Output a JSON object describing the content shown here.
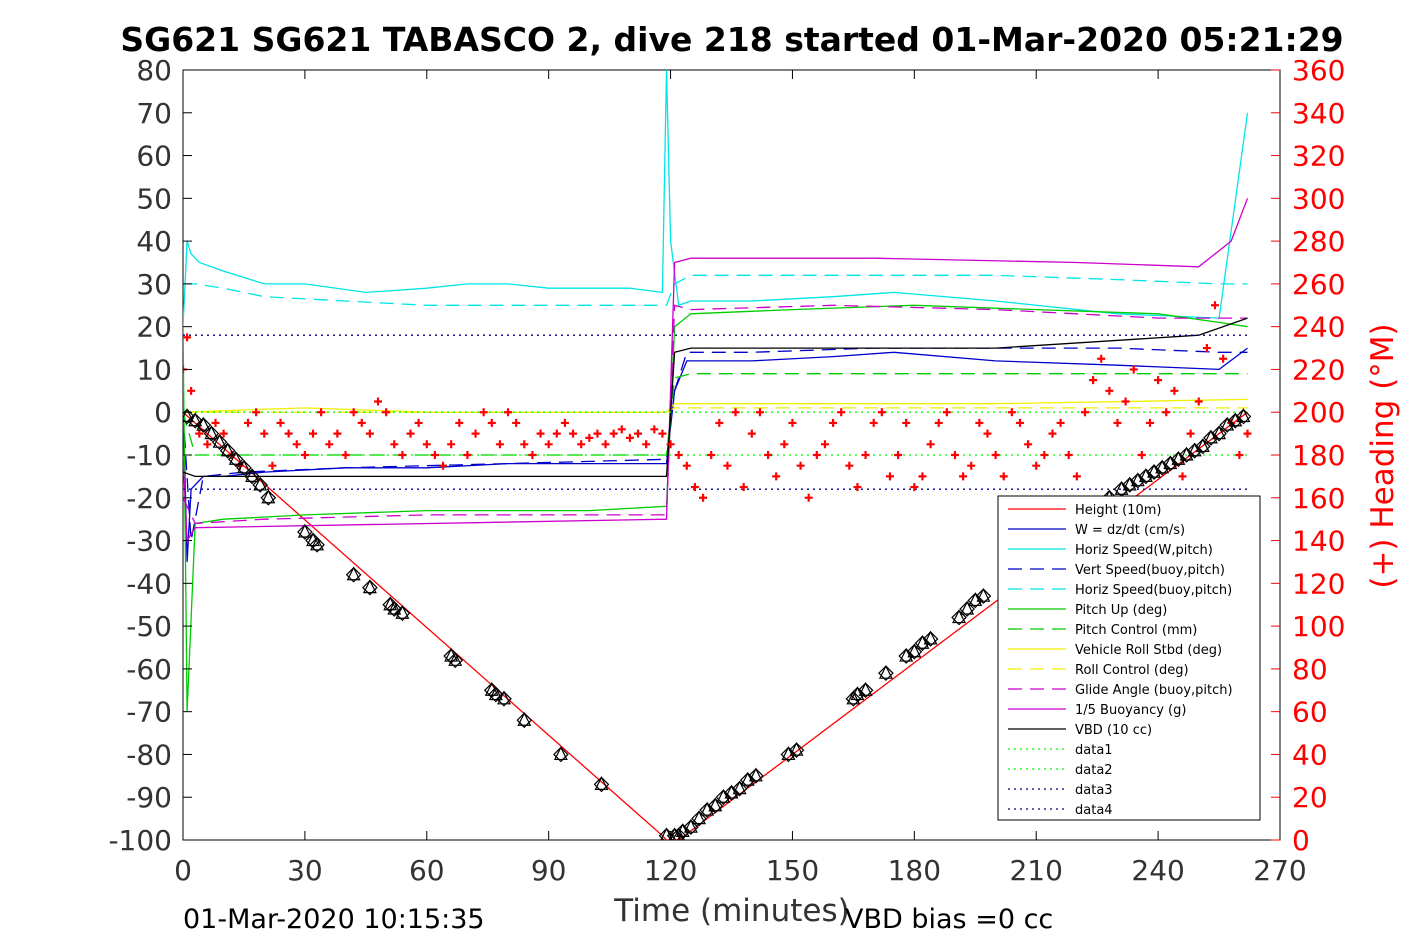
{
  "chart_data": {
    "type": "line",
    "title": "SG621 SG621 TABASCO 2, dive 218 started 01-Mar-2020 05:21:29",
    "xlabel": "Time (minutes)",
    "ylabel_left": "",
    "ylabel_right": "(+) Heading (°M)",
    "xlim": [
      0,
      270
    ],
    "ylim_left": [
      -100,
      80
    ],
    "ylim_right": [
      0,
      360
    ],
    "x_ticks": [
      "0",
      "30",
      "60",
      "90",
      "120",
      "150",
      "180",
      "210",
      "240",
      "270"
    ],
    "y_ticks_left": [
      "80",
      "70",
      "60",
      "50",
      "40",
      "30",
      "20",
      "10",
      "0",
      "-10",
      "-20",
      "-30",
      "-40",
      "-50",
      "-60",
      "-70",
      "-80",
      "-90",
      "-100"
    ],
    "y_ticks_right": [
      "360",
      "340",
      "320",
      "300",
      "280",
      "260",
      "240",
      "220",
      "200",
      "180",
      "160",
      "140",
      "120",
      "100",
      "80",
      "60",
      "40",
      "20",
      "0"
    ],
    "footer_left": "01-Mar-2020 10:15:35",
    "footer_right": "VBD bias =0 cc",
    "legend_position": "bottom-right",
    "grid": false,
    "series": [
      {
        "name": "Height (10m)",
        "color": "#ff0000",
        "style": "solid",
        "x": [
          0,
          118,
          119,
          122,
          262
        ],
        "y": [
          0,
          -99,
          -100,
          -100,
          0
        ]
      },
      {
        "name": "W = dz/dt (cm/s)",
        "color": "#0000cc",
        "style": "solid",
        "x": [
          0,
          1,
          2,
          5,
          10,
          20,
          40,
          60,
          80,
          100,
          119,
          121,
          124,
          140,
          160,
          175,
          200,
          230,
          255,
          262
        ],
        "y": [
          5,
          -35,
          -18,
          -15,
          -15,
          -14,
          -13,
          -13,
          -12,
          -12,
          -12,
          5,
          12,
          12,
          13,
          14,
          12,
          11,
          10,
          15
        ]
      },
      {
        "name": "Horiz Speed(W,pitch)",
        "color": "#00e5e5",
        "style": "solid",
        "x": [
          0,
          1,
          2,
          4,
          10,
          20,
          30,
          45,
          60,
          70,
          80,
          90,
          100,
          110,
          118,
          119,
          120,
          122,
          125,
          140,
          160,
          175,
          200,
          230,
          255,
          262
        ],
        "y": [
          20,
          40,
          37,
          35,
          33,
          30,
          30,
          28,
          29,
          30,
          30,
          29,
          29,
          29,
          28,
          80,
          40,
          25,
          26,
          26,
          27,
          28,
          26,
          23,
          22,
          70
        ]
      },
      {
        "name": "Vert Speed(buoy,pitch)",
        "color": "#0000cc",
        "style": "dashed",
        "x": [
          0,
          2,
          5,
          15,
          40,
          80,
          119,
          121,
          124,
          140,
          170,
          200,
          230,
          255,
          262
        ],
        "y": [
          0,
          -30,
          -15,
          -14,
          -13,
          -12,
          -11,
          5,
          14,
          14,
          15,
          15,
          15,
          14,
          14
        ]
      },
      {
        "name": "Horiz Speed(buoy,pitch)",
        "color": "#00e5e5",
        "style": "dashed",
        "x": [
          0,
          3,
          10,
          20,
          40,
          60,
          80,
          100,
          119,
          121,
          125,
          160,
          200,
          230,
          255,
          262
        ],
        "y": [
          30,
          30,
          29,
          27,
          26,
          25,
          25,
          25,
          25,
          30,
          32,
          32,
          32,
          31,
          30,
          30
        ]
      },
      {
        "name": "Pitch Up (deg)",
        "color": "#00cc00",
        "style": "solid",
        "x": [
          0,
          1,
          3,
          10,
          30,
          60,
          100,
          119,
          121,
          125,
          150,
          180,
          210,
          240,
          255,
          262
        ],
        "y": [
          20,
          -70,
          -26,
          -25,
          -24,
          -23,
          -23,
          -22,
          20,
          23,
          24,
          25,
          24,
          23,
          21,
          20
        ]
      },
      {
        "name": "Pitch Control (mm)",
        "color": "#00cc00",
        "style": "dashed",
        "x": [
          0,
          3,
          60,
          119,
          121,
          125,
          200,
          262
        ],
        "y": [
          0,
          -10,
          -10,
          -10,
          8,
          9,
          9,
          9
        ]
      },
      {
        "name": "Vehicle Roll Stbd (deg)",
        "color": "#f0f000",
        "style": "solid",
        "x": [
          0,
          30,
          60,
          90,
          119,
          121,
          150,
          200,
          262
        ],
        "y": [
          0,
          1,
          0,
          0,
          0,
          2,
          2,
          2,
          3
        ]
      },
      {
        "name": "Roll Control (deg)",
        "color": "#f0f000",
        "style": "dashed",
        "x": [
          0,
          119,
          121,
          262
        ],
        "y": [
          0,
          0,
          1,
          1
        ]
      },
      {
        "name": "Glide Angle (buoy,pitch)",
        "color": "#cc00cc",
        "style": "dashed",
        "x": [
          0,
          3,
          20,
          60,
          119,
          121,
          125,
          160,
          200,
          240,
          262
        ],
        "y": [
          -20,
          -26,
          -25,
          -24,
          -24,
          25,
          24,
          25,
          24,
          22,
          22
        ]
      },
      {
        "name": "1/5 Buoyancy (g)",
        "color": "#cc00cc",
        "style": "solid",
        "x": [
          0,
          1,
          3,
          119,
          121,
          125,
          170,
          220,
          250,
          258,
          262
        ],
        "y": [
          -10,
          -30,
          -27,
          -25,
          35,
          36,
          36,
          35,
          34,
          40,
          50
        ]
      },
      {
        "name": "VBD (10 cc)",
        "color": "#000000",
        "style": "solid",
        "x": [
          0,
          3,
          119,
          121,
          125,
          200,
          250,
          262
        ],
        "y": [
          -14,
          -15,
          -15,
          14,
          15,
          15,
          18,
          22
        ]
      },
      {
        "name": "data1",
        "color": "#00ff00",
        "style": "dotted",
        "x": [
          0,
          262
        ],
        "y": [
          -10,
          -10
        ]
      },
      {
        "name": "data2",
        "color": "#00ff00",
        "style": "dotted",
        "x": [
          0,
          262
        ],
        "y": [
          0,
          0
        ]
      },
      {
        "name": "data3",
        "color": "#000080",
        "style": "dotted",
        "x": [
          0,
          262
        ],
        "y": [
          -18,
          -18
        ]
      },
      {
        "name": "data4",
        "color": "#000080",
        "style": "dotted",
        "x": [
          0,
          262
        ],
        "y": [
          18,
          18
        ]
      }
    ],
    "heading_series": {
      "axis": "right",
      "color": "#ff0000",
      "marker": "+",
      "x": [
        0,
        1,
        2,
        4,
        6,
        8,
        10,
        12,
        14,
        16,
        18,
        20,
        22,
        24,
        26,
        28,
        30,
        32,
        34,
        36,
        38,
        40,
        42,
        44,
        46,
        48,
        50,
        52,
        54,
        56,
        58,
        60,
        62,
        64,
        66,
        68,
        70,
        72,
        74,
        76,
        78,
        80,
        82,
        84,
        86,
        88,
        90,
        92,
        94,
        96,
        98,
        100,
        102,
        104,
        106,
        108,
        110,
        112,
        114,
        116,
        118,
        120,
        122,
        124,
        126,
        128,
        130,
        132,
        134,
        136,
        138,
        140,
        142,
        144,
        146,
        148,
        150,
        152,
        154,
        156,
        158,
        160,
        162,
        164,
        166,
        168,
        170,
        172,
        174,
        176,
        178,
        180,
        182,
        184,
        186,
        188,
        190,
        192,
        194,
        196,
        198,
        200,
        202,
        204,
        206,
        208,
        210,
        212,
        214,
        216,
        218,
        220,
        222,
        224,
        226,
        228,
        230,
        232,
        234,
        236,
        238,
        240,
        242,
        244,
        246,
        248,
        250,
        252,
        254,
        256,
        258,
        260,
        262
      ],
      "y": [
        220,
        235,
        210,
        190,
        185,
        195,
        190,
        180,
        175,
        195,
        200,
        190,
        175,
        195,
        190,
        185,
        180,
        190,
        200,
        185,
        190,
        180,
        200,
        195,
        190,
        205,
        200,
        185,
        180,
        190,
        195,
        185,
        180,
        175,
        185,
        195,
        180,
        190,
        200,
        195,
        185,
        200,
        195,
        185,
        180,
        190,
        185,
        190,
        195,
        190,
        185,
        188,
        190,
        185,
        190,
        192,
        188,
        190,
        185,
        192,
        190,
        185,
        180,
        175,
        165,
        160,
        180,
        195,
        175,
        200,
        165,
        190,
        200,
        180,
        170,
        185,
        195,
        175,
        160,
        180,
        185,
        195,
        200,
        175,
        165,
        180,
        195,
        200,
        170,
        180,
        195,
        165,
        170,
        185,
        195,
        200,
        180,
        170,
        175,
        195,
        190,
        180,
        170,
        200,
        195,
        185,
        175,
        180,
        190,
        195,
        180,
        170,
        200,
        215,
        225,
        210,
        195,
        205,
        220,
        180,
        195,
        215,
        200,
        210,
        170,
        190,
        205,
        230,
        250,
        225,
        195,
        180,
        190
      ]
    },
    "markers": {
      "axis": "left",
      "color": "#000000",
      "marker": "diamond-triangle",
      "x": [
        1,
        3,
        5,
        7,
        9,
        11,
        13,
        15,
        17,
        19,
        21,
        30,
        32,
        33,
        42,
        46,
        51,
        52,
        54,
        66,
        67,
        76,
        77,
        79,
        84,
        93,
        103,
        119,
        121,
        122,
        123,
        125,
        127,
        129,
        131,
        133,
        135,
        137,
        139,
        141,
        149,
        151,
        165,
        166,
        168,
        173,
        178,
        180,
        182,
        184,
        191,
        193,
        195,
        197,
        225,
        228,
        231,
        233,
        235,
        237,
        239,
        241,
        243,
        245,
        247,
        249,
        251,
        253,
        255,
        257,
        259,
        261
      ],
      "y": [
        -1,
        -2,
        -3,
        -5,
        -7,
        -9,
        -11,
        -13,
        -15,
        -17,
        -20,
        -28,
        -30,
        -31,
        -38,
        -41,
        -45,
        -46,
        -47,
        -57,
        -58,
        -65,
        -66,
        -67,
        -72,
        -80,
        -87,
        -99,
        -99,
        -99,
        -98,
        -97,
        -95,
        -93,
        -92,
        -90,
        -89,
        -88,
        -86,
        -85,
        -80,
        -79,
        -67,
        -66,
        -65,
        -61,
        -57,
        -56,
        -54,
        -53,
        -48,
        -46,
        -44,
        -43,
        -22,
        -20,
        -18,
        -17,
        -16,
        -15,
        -14,
        -13,
        -12,
        -11,
        -10,
        -9,
        -8,
        -6,
        -5,
        -3,
        -2,
        -1
      ]
    }
  }
}
